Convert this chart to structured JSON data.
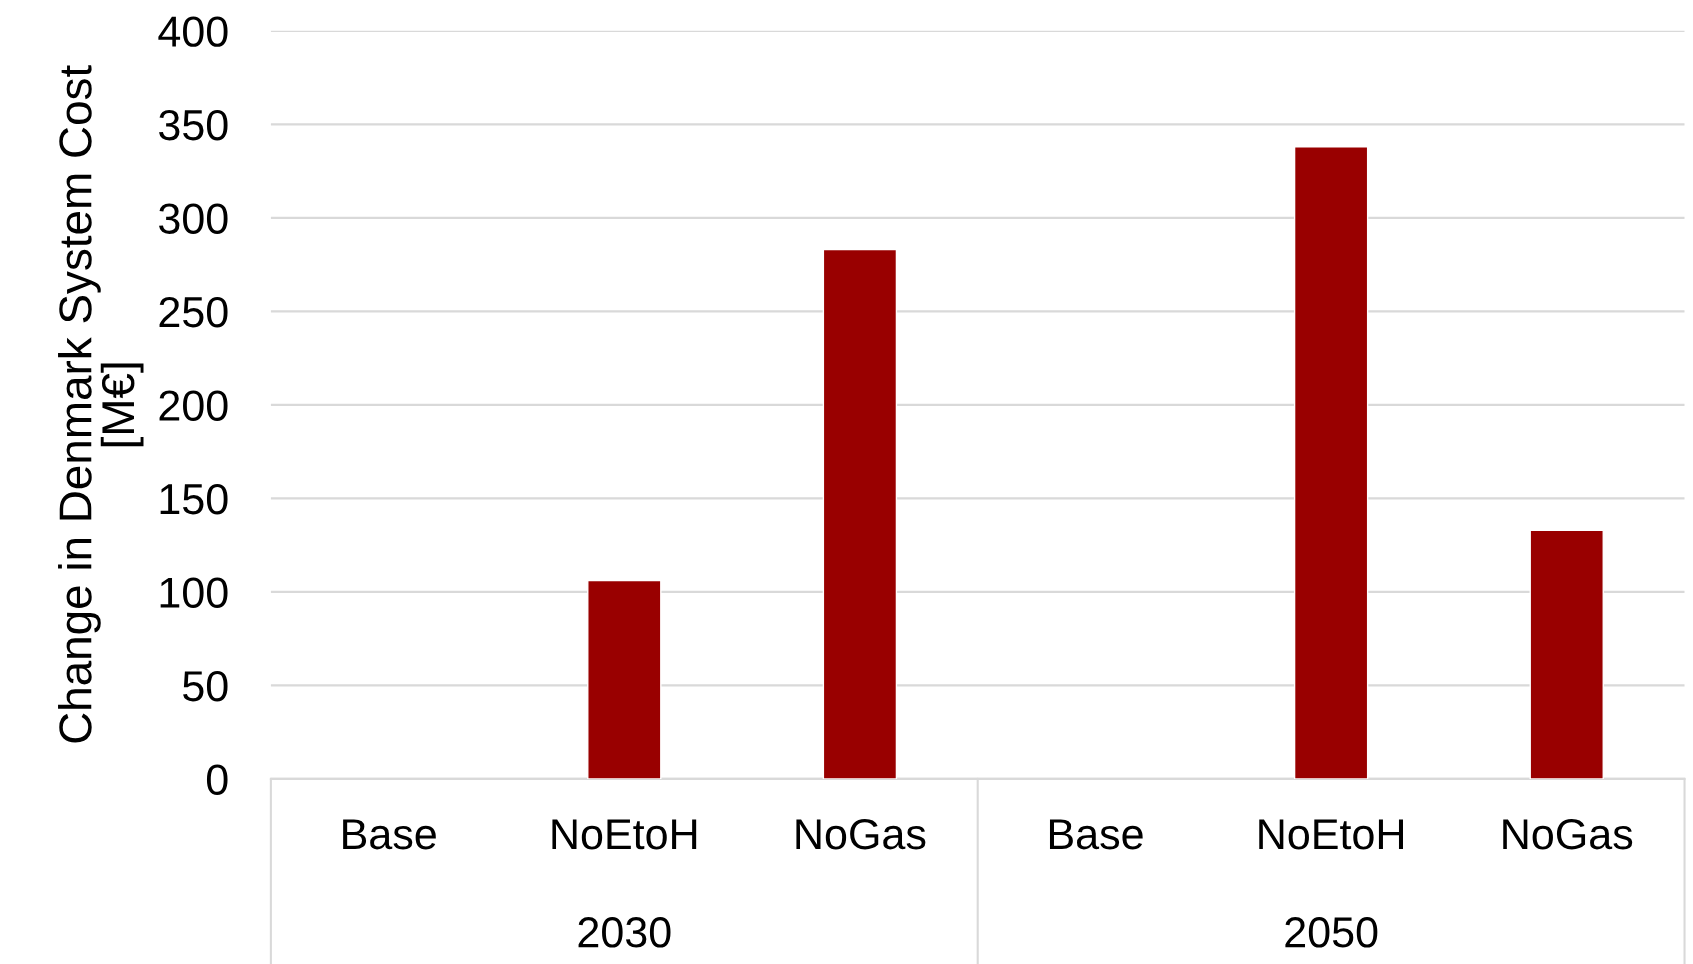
{
  "chart_data": {
    "type": "bar",
    "ylabel": "Change in Denmark System Cost [M€]",
    "categories": [
      "Base",
      "NoEtoH",
      "NoGas",
      "Base",
      "NoEtoH",
      "NoGas"
    ],
    "values": [
      null,
      106,
      283,
      null,
      338,
      133
    ],
    "color": "#990000",
    "annotations": [
      "2030",
      "2050"
    ],
    "ylim": [
      0,
      400
    ],
    "yticks": [
      0,
      50,
      100,
      150,
      200,
      250,
      300,
      350,
      400
    ],
    "grid": "y"
  }
}
